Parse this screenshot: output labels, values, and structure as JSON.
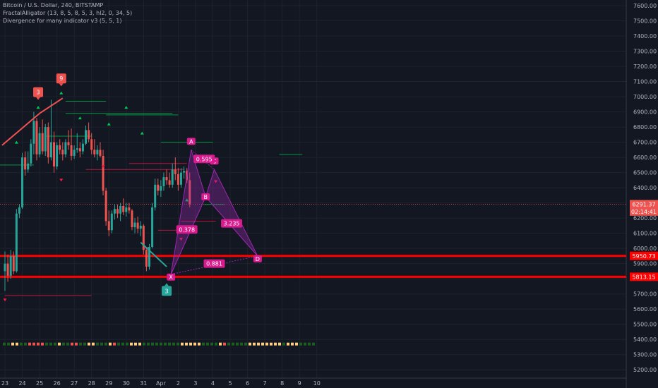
{
  "header": {
    "title": "Bitcoin / U.S. Dollar, 240, BITSTAMP",
    "indicator1": "FractalAlligator (13, 8, 5, 8, 5, 3, hl2, 0, 34, 5)",
    "indicator2": "Divergence for many indicator v3 (5, 5, 1)"
  },
  "colors": {
    "background": "#131722",
    "grid": "#1e222d",
    "up": "#26a69a",
    "down": "#ef5350",
    "pattern": "#9c27b0",
    "pattern_label": "#d81b8e",
    "support": "#ff0000",
    "fractal_up": "#00c853",
    "fractal_down": "#ff1744"
  },
  "chart_data": {
    "type": "candlestick",
    "ylim": [
      5150,
      7700
    ],
    "y_ticks": [
      "7600.00",
      "7500.00",
      "7400.00",
      "7300.00",
      "7200.00",
      "7100.00",
      "7000.00",
      "6900.00",
      "6800.00",
      "6700.00",
      "6600.00",
      "6500.00",
      "6400.00",
      "6300.00",
      "6200.00",
      "6100.00",
      "6000.00",
      "5900.00",
      "5800.00",
      "5700.00",
      "5600.00",
      "5500.00",
      "5400.00",
      "5300.00",
      "5200.00"
    ],
    "x_ticks": [
      {
        "label": "23",
        "bar": 0
      },
      {
        "label": "24",
        "bar": 6
      },
      {
        "label": "25",
        "bar": 12
      },
      {
        "label": "26",
        "bar": 18
      },
      {
        "label": "27",
        "bar": 24
      },
      {
        "label": "28",
        "bar": 30
      },
      {
        "label": "29",
        "bar": 36
      },
      {
        "label": "30",
        "bar": 42
      },
      {
        "label": "31",
        "bar": 48
      },
      {
        "label": "Apr",
        "bar": 54
      },
      {
        "label": "2",
        "bar": 60
      },
      {
        "label": "3",
        "bar": 66
      },
      {
        "label": "4",
        "bar": 72
      },
      {
        "label": "5",
        "bar": 78
      },
      {
        "label": "6",
        "bar": 84
      },
      {
        "label": "7",
        "bar": 90
      },
      {
        "label": "8",
        "bar": 96
      },
      {
        "label": "9",
        "bar": 102
      },
      {
        "label": "10",
        "bar": 108
      }
    ],
    "candles": [
      {
        "o": 5850,
        "h": 5980,
        "l": 5720,
        "c": 5900
      },
      {
        "o": 5900,
        "h": 5960,
        "l": 5780,
        "c": 5820
      },
      {
        "o": 5820,
        "h": 5990,
        "l": 5800,
        "c": 5950
      },
      {
        "o": 5950,
        "h": 5980,
        "l": 5830,
        "c": 5850
      },
      {
        "o": 5850,
        "h": 6260,
        "l": 5840,
        "c": 6230
      },
      {
        "o": 6230,
        "h": 6290,
        "l": 6200,
        "c": 6270
      },
      {
        "o": 6270,
        "h": 6630,
        "l": 6260,
        "c": 6600
      },
      {
        "o": 6600,
        "h": 6640,
        "l": 6480,
        "c": 6520
      },
      {
        "o": 6520,
        "h": 6640,
        "l": 6500,
        "c": 6560
      },
      {
        "o": 6560,
        "h": 6720,
        "l": 6540,
        "c": 6690
      },
      {
        "o": 6690,
        "h": 6900,
        "l": 6620,
        "c": 6840
      },
      {
        "o": 6840,
        "h": 6860,
        "l": 6580,
        "c": 6620
      },
      {
        "o": 6620,
        "h": 6800,
        "l": 6600,
        "c": 6760
      },
      {
        "o": 6760,
        "h": 6850,
        "l": 6620,
        "c": 6640
      },
      {
        "o": 6640,
        "h": 6820,
        "l": 6610,
        "c": 6800
      },
      {
        "o": 6800,
        "h": 6830,
        "l": 6560,
        "c": 6600
      },
      {
        "o": 6600,
        "h": 6980,
        "l": 6580,
        "c": 6700
      },
      {
        "o": 6700,
        "h": 6770,
        "l": 6500,
        "c": 6540
      },
      {
        "o": 6540,
        "h": 6700,
        "l": 6520,
        "c": 6680
      },
      {
        "o": 6680,
        "h": 6720,
        "l": 6620,
        "c": 6650
      },
      {
        "o": 6650,
        "h": 6700,
        "l": 6580,
        "c": 6620
      },
      {
        "o": 6620,
        "h": 6720,
        "l": 6600,
        "c": 6700
      },
      {
        "o": 6700,
        "h": 6780,
        "l": 6650,
        "c": 6680
      },
      {
        "o": 6680,
        "h": 6790,
        "l": 6580,
        "c": 6610
      },
      {
        "o": 6610,
        "h": 6680,
        "l": 6590,
        "c": 6650
      },
      {
        "o": 6650,
        "h": 6760,
        "l": 6630,
        "c": 6660
      },
      {
        "o": 6660,
        "h": 6700,
        "l": 6600,
        "c": 6640
      },
      {
        "o": 6640,
        "h": 6720,
        "l": 6620,
        "c": 6690
      },
      {
        "o": 6690,
        "h": 6810,
        "l": 6680,
        "c": 6780
      },
      {
        "o": 6780,
        "h": 6830,
        "l": 6700,
        "c": 6720
      },
      {
        "o": 6720,
        "h": 6760,
        "l": 6620,
        "c": 6650
      },
      {
        "o": 6650,
        "h": 6720,
        "l": 6600,
        "c": 6620
      },
      {
        "o": 6620,
        "h": 6680,
        "l": 6580,
        "c": 6650
      },
      {
        "o": 6650,
        "h": 6700,
        "l": 6600,
        "c": 6610
      },
      {
        "o": 6610,
        "h": 6650,
        "l": 6350,
        "c": 6380
      },
      {
        "o": 6380,
        "h": 6400,
        "l": 6150,
        "c": 6180
      },
      {
        "o": 6180,
        "h": 6250,
        "l": 6080,
        "c": 6120
      },
      {
        "o": 6120,
        "h": 6250,
        "l": 6100,
        "c": 6230
      },
      {
        "o": 6230,
        "h": 6290,
        "l": 6190,
        "c": 6260
      },
      {
        "o": 6260,
        "h": 6290,
        "l": 6200,
        "c": 6230
      },
      {
        "o": 6230,
        "h": 6300,
        "l": 6180,
        "c": 6280
      },
      {
        "o": 6280,
        "h": 6330,
        "l": 6220,
        "c": 6240
      },
      {
        "o": 6240,
        "h": 6300,
        "l": 6210,
        "c": 6270
      },
      {
        "o": 6270,
        "h": 6300,
        "l": 6230,
        "c": 6250
      },
      {
        "o": 6250,
        "h": 6260,
        "l": 6120,
        "c": 6140
      },
      {
        "o": 6140,
        "h": 6200,
        "l": 6100,
        "c": 6170
      },
      {
        "o": 6170,
        "h": 6210,
        "l": 6100,
        "c": 6130
      },
      {
        "o": 6130,
        "h": 6180,
        "l": 6080,
        "c": 6150
      },
      {
        "o": 6150,
        "h": 6160,
        "l": 5960,
        "c": 5990
      },
      {
        "o": 5990,
        "h": 6000,
        "l": 5850,
        "c": 5880
      },
      {
        "o": 5880,
        "h": 6030,
        "l": 5860,
        "c": 6010
      },
      {
        "o": 6010,
        "h": 6300,
        "l": 6000,
        "c": 6270
      },
      {
        "o": 6270,
        "h": 6460,
        "l": 6250,
        "c": 6420
      },
      {
        "o": 6420,
        "h": 6460,
        "l": 6350,
        "c": 6380
      },
      {
        "o": 6380,
        "h": 6450,
        "l": 6340,
        "c": 6410
      },
      {
        "o": 6410,
        "h": 6500,
        "l": 6380,
        "c": 6470
      },
      {
        "o": 6470,
        "h": 6520,
        "l": 6420,
        "c": 6450
      },
      {
        "o": 6450,
        "h": 6500,
        "l": 6400,
        "c": 6420
      },
      {
        "o": 6420,
        "h": 6560,
        "l": 6400,
        "c": 6520
      },
      {
        "o": 6520,
        "h": 6600,
        "l": 6450,
        "c": 6490
      },
      {
        "o": 6490,
        "h": 6530,
        "l": 6380,
        "c": 6420
      },
      {
        "o": 6420,
        "h": 6530,
        "l": 6400,
        "c": 6500
      },
      {
        "o": 6500,
        "h": 6540,
        "l": 6460,
        "c": 6510
      },
      {
        "o": 6510,
        "h": 6530,
        "l": 6430,
        "c": 6450
      },
      {
        "o": 6450,
        "h": 6500,
        "l": 6270,
        "c": 6291.37
      }
    ],
    "harmonic_pattern": {
      "points": [
        {
          "label": "X",
          "bar": 57.5,
          "price": 5830
        },
        {
          "label": "A",
          "bar": 64.5,
          "price": 6650
        },
        {
          "label": "B",
          "bar": 69.5,
          "price": 6340
        },
        {
          "label": "C",
          "bar": 72.5,
          "price": 6520
        },
        {
          "label": "D",
          "bar": 87.5,
          "price": 5950
        }
      ],
      "ratios": [
        {
          "label": "0.595",
          "bar": 69,
          "price": 6590
        },
        {
          "label": "0.378",
          "bar": 63,
          "price": 6125
        },
        {
          "label": "3.235",
          "bar": 78.5,
          "price": 6165
        },
        {
          "label": "0.881",
          "bar": 72.5,
          "price": 5900
        }
      ]
    },
    "horizontal_lines": [
      {
        "price": 5950.73,
        "label": "5950.73"
      },
      {
        "price": 5813.15,
        "label": "5813.15"
      }
    ],
    "last_price": {
      "value": "6291.37",
      "countdown": "02:14:41"
    },
    "fractal_labels": [
      {
        "label": "3",
        "bar": 11.5,
        "price": 7030,
        "color": "#ef5350",
        "dir": "down"
      },
      {
        "label": "9",
        "bar": 19.5,
        "price": 7120,
        "color": "#ef5350",
        "dir": "down"
      },
      {
        "label": "3",
        "bar": 56,
        "price": 5720,
        "color": "#26a69a",
        "dir": "up"
      }
    ],
    "trend_lines": [
      {
        "from": {
          "bar": -1,
          "price": 6680
        },
        "to": {
          "bar": 12,
          "price": 6890
        },
        "color": "#ef5350"
      },
      {
        "from": {
          "bar": 12,
          "price": 6890
        },
        "to": {
          "bar": 20,
          "price": 6990
        },
        "color": "#ef5350"
      },
      {
        "from": {
          "bar": 47,
          "price": 6040
        },
        "to": {
          "bar": 56,
          "price": 5880
        },
        "color": "#26a69a"
      }
    ],
    "dot_strip": {
      "count": 74,
      "pattern": [
        "#1b5e20",
        "#1b5e20",
        "#ffcc80",
        "#ffcc80",
        "#1b5e20",
        "#1b5e20",
        "#ef5350",
        "#ef5350",
        "#ef5350",
        "#ef5350",
        "#1b5e20",
        "#1b5e20",
        "#1b5e20",
        "#ffcc80",
        "#1b5e20",
        "#1b5e20",
        "#ef5350",
        "#ef5350",
        "#1b5e20",
        "#1b5e20",
        "#ffcc80",
        "#ffcc80",
        "#1b5e20",
        "#1b5e20",
        "#1b5e20",
        "#ffcc80",
        "#ef5350",
        "#1b5e20",
        "#1b5e20",
        "#1b5e20",
        "#ffcc80",
        "#ffcc80",
        "#ffcc80",
        "#1b5e20",
        "#1b5e20",
        "#1b5e20",
        "#1b5e20",
        "#1b5e20",
        "#1b5e20",
        "#1b5e20",
        "#1b5e20",
        "#1b5e20",
        "#ffcc80",
        "#ffcc80",
        "#ffcc80",
        "#ffcc80",
        "#ffcc80",
        "#1b5e20",
        "#1b5e20",
        "#1b5e20",
        "#1b5e20",
        "#ffcc80",
        "#ef5350",
        "#1b5e20",
        "#1b5e20",
        "#1b5e20",
        "#1b5e20",
        "#1b5e20",
        "#ffcc80",
        "#ffcc80",
        "#ffcc80",
        "#ffcc80",
        "#ffcc80",
        "#ffcc80",
        "#ffcc80",
        "#ffcc80",
        "#1b5e20",
        "#ffcc80",
        "#ffcc80",
        "#ffcc80",
        "#1b5e20",
        "#1b5e20",
        "#1b5e20",
        "#1b5e20"
      ]
    }
  }
}
